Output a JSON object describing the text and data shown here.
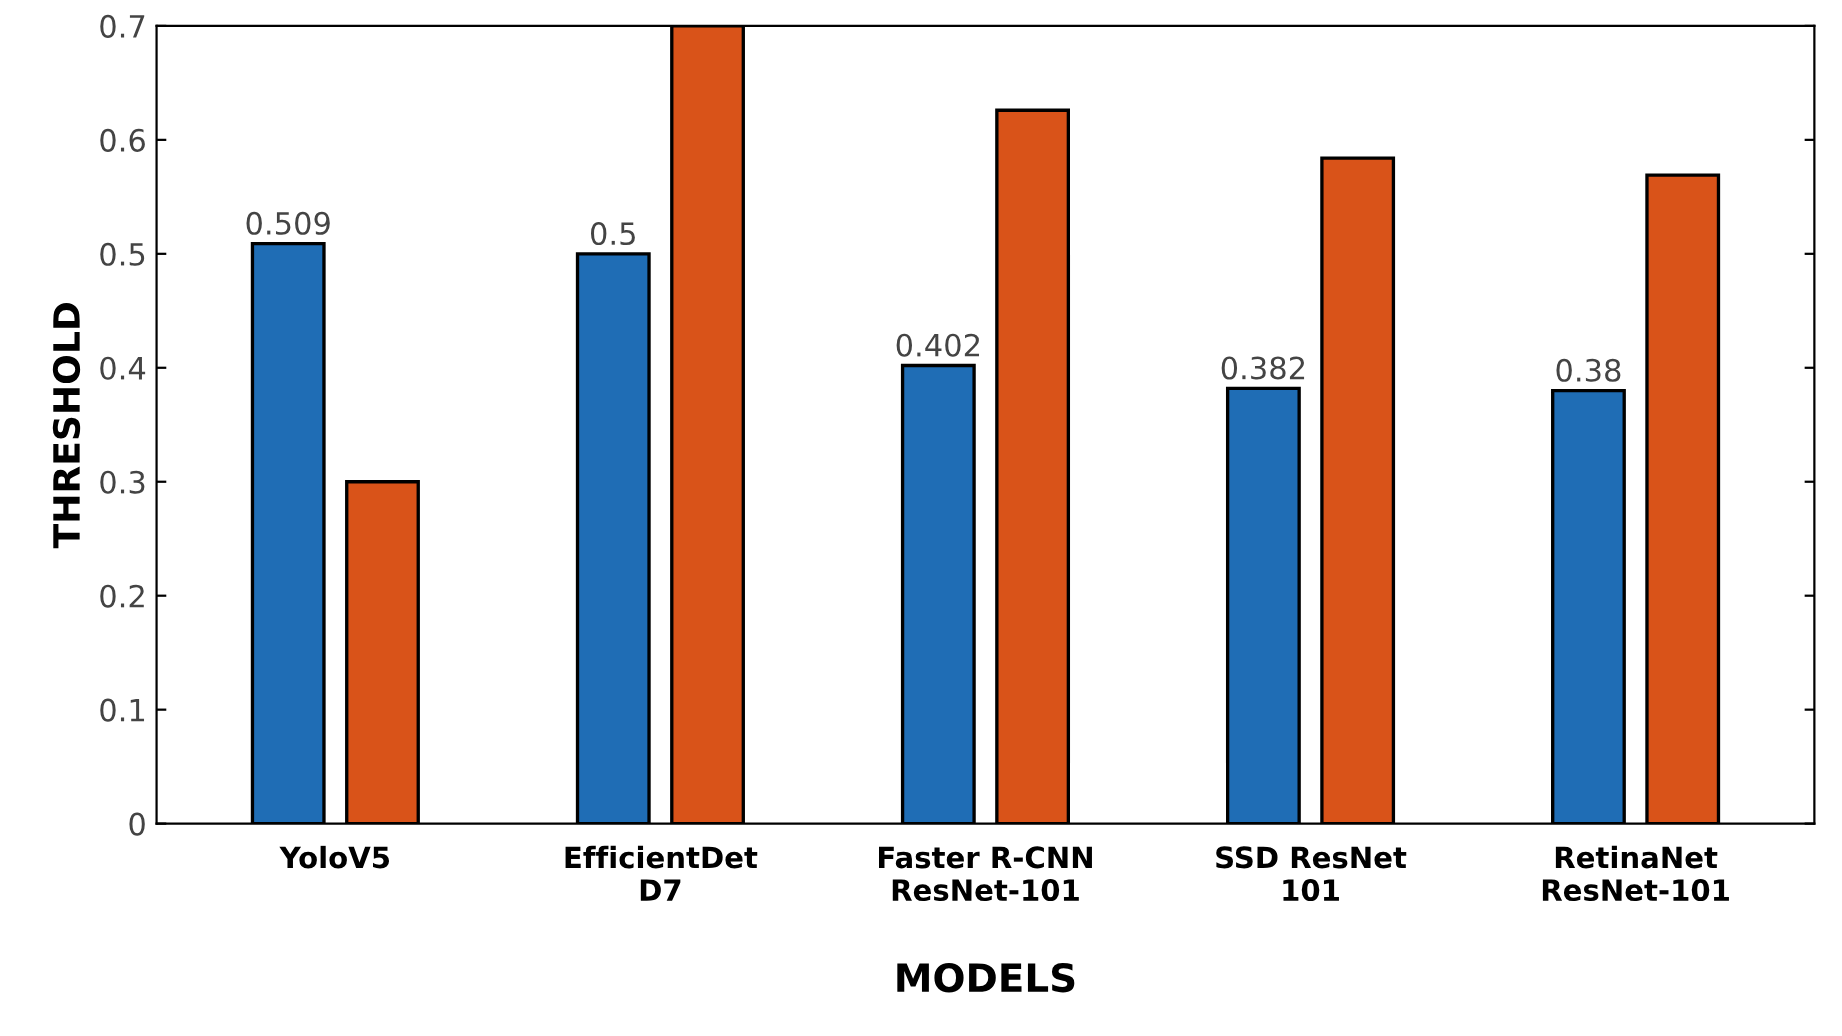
{
  "chart_data": {
    "type": "bar",
    "xlabel": "MODELS",
    "ylabel": "THRESHOLD",
    "categories": [
      "YoloV5",
      "EfficientDet\nD7",
      "Faster R-CNN\nResNet-101",
      "SSD ResNet\n101",
      "RetinaNet\nResNet-101"
    ],
    "series": [
      {
        "color": "#1f6db5",
        "values": [
          0.509,
          0.5,
          0.402,
          0.382,
          0.38
        ],
        "value_labels": [
          "0.509",
          "0.5",
          "0.402",
          "0.382",
          "0.38"
        ]
      },
      {
        "color": "#d95319",
        "values": [
          0.3,
          0.7,
          0.626,
          0.584,
          0.569
        ]
      }
    ],
    "ylim": [
      0,
      0.7
    ],
    "yticks": [
      0,
      0.1,
      0.2,
      0.3,
      0.4,
      0.5,
      0.6,
      0.7
    ],
    "grid": false,
    "legend": false
  }
}
